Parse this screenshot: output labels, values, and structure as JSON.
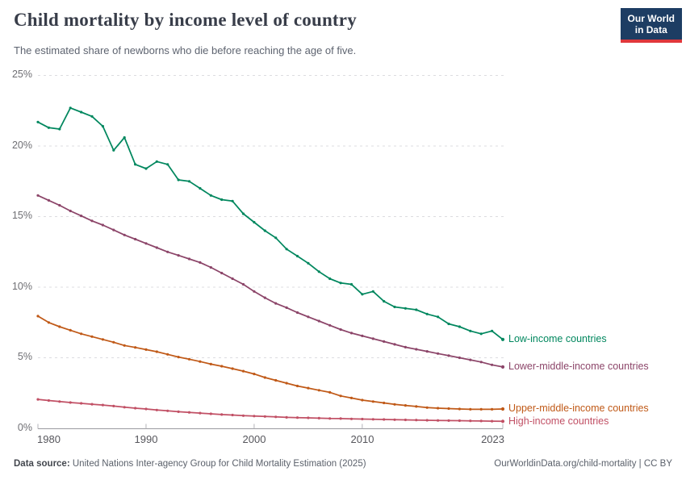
{
  "header": {
    "title": "Child mortality by income level of country",
    "subtitle": "The estimated share of newborns who die before reaching the age of five.",
    "logo": {
      "line1": "Our World",
      "line2": "in Data",
      "bg_color": "#1D3D63",
      "stripe_color": "#E0373B"
    }
  },
  "chart_data": {
    "type": "line",
    "title": "Child mortality by income level of country",
    "xlabel": "",
    "ylabel": "",
    "xlim": [
      1980,
      2023
    ],
    "ylim": [
      0,
      25
    ],
    "grid": "horizontal-dashed",
    "legend_position": "end-of-line-labels",
    "yticks": [
      "25%",
      "20%",
      "15%",
      "10%",
      "5%",
      "0%"
    ],
    "ytick_values": [
      25,
      20,
      15,
      10,
      5,
      0
    ],
    "xticks": [
      "1980",
      "1990",
      "2000",
      "2010",
      "2023"
    ],
    "xtick_values": [
      1980,
      1990,
      2000,
      2010,
      2023
    ],
    "x": [
      1980,
      1981,
      1982,
      1983,
      1984,
      1985,
      1986,
      1987,
      1988,
      1989,
      1990,
      1991,
      1992,
      1993,
      1994,
      1995,
      1996,
      1997,
      1998,
      1999,
      2000,
      2001,
      2002,
      2003,
      2004,
      2005,
      2006,
      2007,
      2008,
      2009,
      2010,
      2011,
      2012,
      2013,
      2014,
      2015,
      2016,
      2017,
      2018,
      2019,
      2020,
      2021,
      2022,
      2023
    ],
    "series": [
      {
        "name": "Low-income countries",
        "color": "#00875E",
        "values": [
          21.7,
          21.3,
          21.2,
          22.7,
          22.4,
          22.1,
          21.4,
          19.7,
          20.6,
          18.7,
          18.4,
          18.9,
          18.7,
          17.6,
          17.5,
          17.0,
          16.5,
          16.2,
          16.1,
          15.2,
          14.6,
          14.0,
          13.5,
          12.7,
          12.2,
          11.7,
          11.1,
          10.6,
          10.3,
          10.2,
          9.5,
          9.7,
          9.0,
          8.6,
          8.5,
          8.4,
          8.1,
          7.9,
          7.4,
          7.2,
          6.9,
          6.7,
          6.9,
          6.3
        ]
      },
      {
        "name": "Lower-middle-income countries",
        "color": "#8C4569",
        "values": [
          16.5,
          16.15,
          15.8,
          15.4,
          15.05,
          14.7,
          14.4,
          14.05,
          13.7,
          13.4,
          13.1,
          12.8,
          12.5,
          12.25,
          12.0,
          11.75,
          11.4,
          11.0,
          10.6,
          10.2,
          9.7,
          9.25,
          8.85,
          8.55,
          8.2,
          7.9,
          7.6,
          7.3,
          7.0,
          6.75,
          6.55,
          6.35,
          6.15,
          5.95,
          5.75,
          5.6,
          5.45,
          5.3,
          5.15,
          5.0,
          4.85,
          4.7,
          4.5,
          4.35
        ]
      },
      {
        "name": "Upper-middle-income countries",
        "color": "#C05917",
        "values": [
          7.95,
          7.5,
          7.2,
          6.95,
          6.7,
          6.5,
          6.3,
          6.1,
          5.87,
          5.73,
          5.58,
          5.43,
          5.24,
          5.05,
          4.9,
          4.73,
          4.55,
          4.4,
          4.23,
          4.05,
          3.85,
          3.6,
          3.4,
          3.2,
          3.0,
          2.85,
          2.7,
          2.55,
          2.3,
          2.15,
          2.0,
          1.9,
          1.8,
          1.7,
          1.62,
          1.55,
          1.47,
          1.43,
          1.4,
          1.37,
          1.35,
          1.35,
          1.35,
          1.37
        ]
      },
      {
        "name": "High-income countries",
        "color": "#C15065",
        "values": [
          2.05,
          1.97,
          1.9,
          1.83,
          1.77,
          1.71,
          1.65,
          1.58,
          1.5,
          1.43,
          1.37,
          1.3,
          1.24,
          1.18,
          1.13,
          1.08,
          1.03,
          0.98,
          0.94,
          0.9,
          0.87,
          0.84,
          0.81,
          0.78,
          0.76,
          0.74,
          0.72,
          0.7,
          0.69,
          0.67,
          0.66,
          0.64,
          0.63,
          0.61,
          0.6,
          0.59,
          0.57,
          0.56,
          0.55,
          0.54,
          0.53,
          0.52,
          0.51,
          0.5
        ]
      }
    ]
  },
  "footer": {
    "source_label": "Data source:",
    "source_text": " United Nations Inter-agency Group for Child Mortality Estimation (2025)",
    "rights": "OurWorldinData.org/child-mortality | CC BY"
  }
}
